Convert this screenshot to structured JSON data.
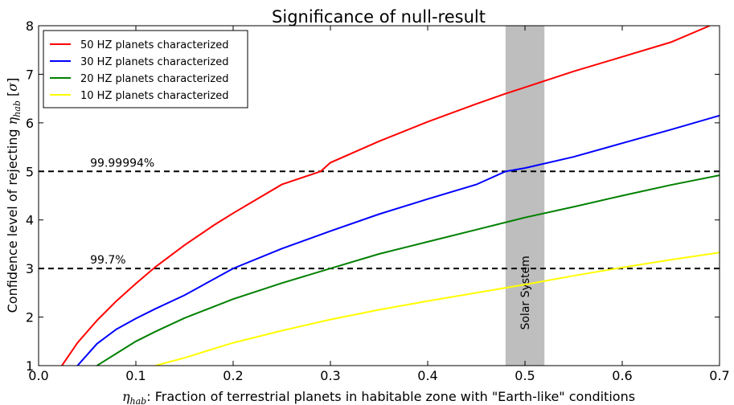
{
  "chart_data": {
    "type": "line",
    "title": "Significance of null-result",
    "xlabel": {
      "math": "η",
      "math_sub": "hab",
      "text": ": Fraction of terrestrial planets in habitable zone with \"Earth-like\" conditions"
    },
    "ylabel": {
      "text": "Confidence level of rejecting ",
      "math": "η",
      "math_sub": "hab",
      "unit_open": " [",
      "unit": "σ",
      "unit_close": "]"
    },
    "xlim": [
      0.0,
      0.7
    ],
    "ylim": [
      1,
      8
    ],
    "xticks": [
      "0.0",
      "0.1",
      "0.2",
      "0.3",
      "0.4",
      "0.5",
      "0.6",
      "0.7"
    ],
    "yticks": [
      "1",
      "2",
      "3",
      "4",
      "5",
      "6",
      "7",
      "8"
    ],
    "grid": false,
    "legend_position": "top-left",
    "series": [
      {
        "name": "50 HZ planets characterized",
        "color": "#ff0000",
        "x": [
          0.024,
          0.04,
          0.06,
          0.08,
          0.1,
          0.12,
          0.15,
          0.18,
          0.2,
          0.25,
          0.29,
          0.3,
          0.35,
          0.4,
          0.45,
          0.48,
          0.5,
          0.55,
          0.6,
          0.65,
          0.69
        ],
        "y": [
          1.0,
          1.47,
          1.93,
          2.33,
          2.69,
          3.03,
          3.48,
          3.89,
          4.14,
          4.73,
          5.0,
          5.18,
          5.62,
          6.02,
          6.39,
          6.6,
          6.73,
          7.06,
          7.36,
          7.66,
          8.0
        ]
      },
      {
        "name": "30 HZ planets characterized",
        "color": "#0000ff",
        "x": [
          0.04,
          0.06,
          0.08,
          0.1,
          0.12,
          0.15,
          0.2,
          0.25,
          0.3,
          0.35,
          0.4,
          0.45,
          0.48,
          0.5,
          0.55,
          0.6,
          0.65,
          0.7
        ],
        "y": [
          1.0,
          1.45,
          1.75,
          1.97,
          2.17,
          2.45,
          3.0,
          3.41,
          3.77,
          4.12,
          4.43,
          4.73,
          5.0,
          5.07,
          5.3,
          5.58,
          5.86,
          6.15
        ]
      },
      {
        "name": "20 HZ planets characterized",
        "color": "#008000",
        "x": [
          0.06,
          0.08,
          0.1,
          0.12,
          0.15,
          0.2,
          0.25,
          0.3,
          0.35,
          0.4,
          0.45,
          0.5,
          0.55,
          0.6,
          0.65,
          0.7
        ],
        "y": [
          1.0,
          1.25,
          1.5,
          1.7,
          1.98,
          2.37,
          2.7,
          3.0,
          3.3,
          3.55,
          3.8,
          4.05,
          4.27,
          4.5,
          4.72,
          4.92
        ]
      },
      {
        "name": "10 HZ planets characterized",
        "color": "#ffff00",
        "x": [
          0.12,
          0.15,
          0.2,
          0.25,
          0.3,
          0.35,
          0.4,
          0.45,
          0.5,
          0.55,
          0.6,
          0.65,
          0.7
        ],
        "y": [
          1.0,
          1.16,
          1.47,
          1.72,
          1.95,
          2.15,
          2.33,
          2.5,
          2.67,
          2.85,
          3.02,
          3.18,
          3.33
        ]
      }
    ],
    "hlines": [
      {
        "y": 5,
        "label": "99.99994%",
        "label_x": 0.053
      },
      {
        "y": 3,
        "label": "99.7%",
        "label_x": 0.053
      }
    ],
    "band": {
      "x0": 0.48,
      "x1": 0.52,
      "label": "Solar System",
      "color": "#bebebe"
    }
  }
}
